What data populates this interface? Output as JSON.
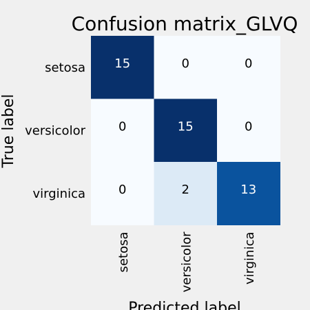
{
  "chart_data": {
    "type": "heatmap",
    "title": "Confusion matrix_GLVQ",
    "xlabel": "Predicted label",
    "ylabel": "True label",
    "x_categories": [
      "setosa",
      "versicolor",
      "virginica"
    ],
    "y_categories": [
      "setosa",
      "versicolor",
      "virginica"
    ],
    "values": [
      [
        15,
        0,
        0
      ],
      [
        0,
        15,
        0
      ],
      [
        0,
        2,
        13
      ]
    ],
    "colormap": "Blues",
    "value_range": [
      0,
      15
    ],
    "grid": false,
    "colors": {
      "background": "#f0f0f0",
      "high": "#08306b",
      "low": "#f7fbff",
      "text_dark": "#000000",
      "text_light": "#ffffff"
    }
  }
}
